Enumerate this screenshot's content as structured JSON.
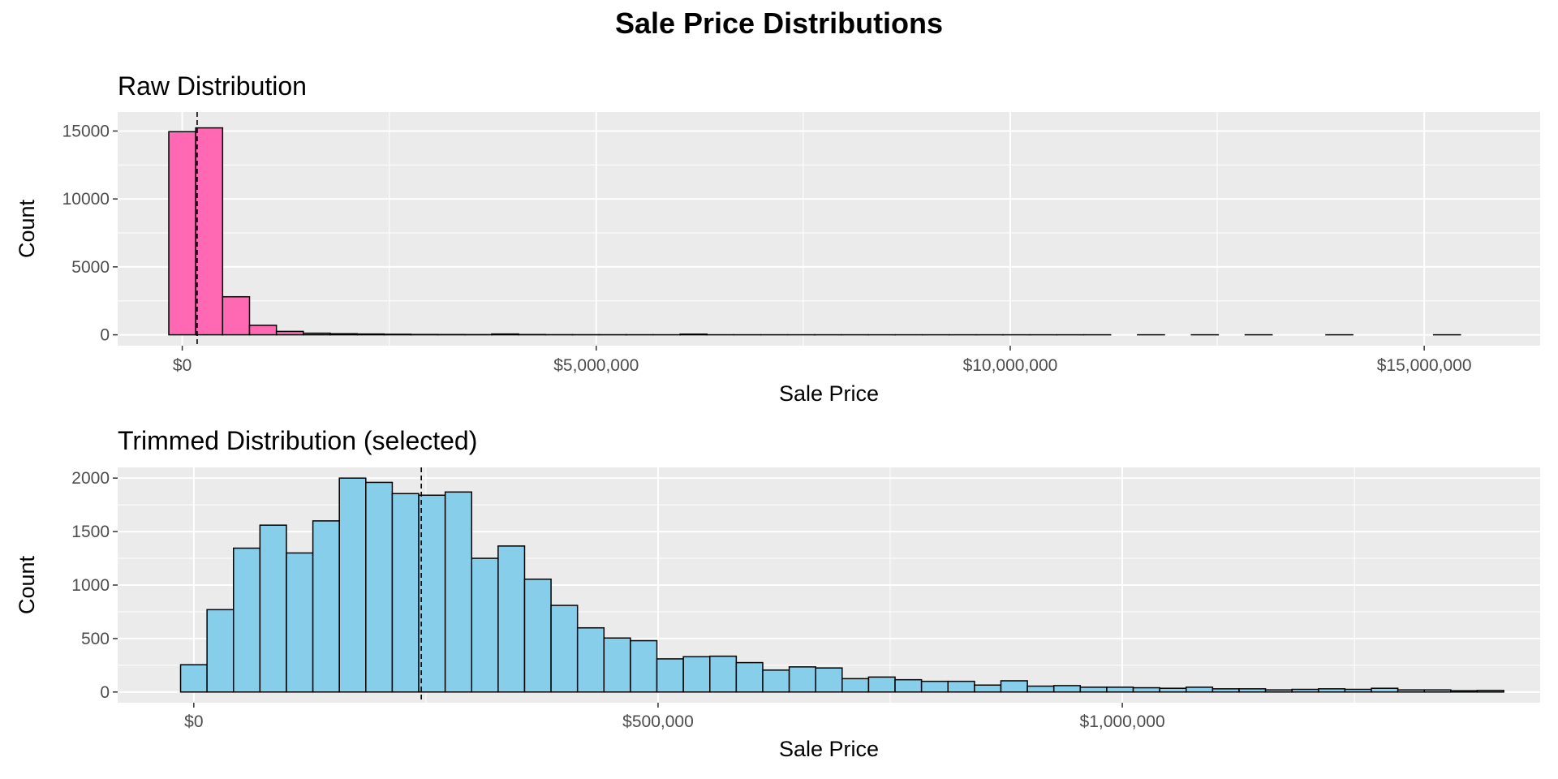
{
  "title": "Sale Price Distributions",
  "colors": {
    "panel_bg": "#EBEBEB",
    "grid": "#FFFFFF",
    "raw_fill": "#FF69B4",
    "trimmed_fill": "#87CEEB",
    "bar_stroke": "#000000",
    "axis_text": "#4D4D4D"
  },
  "chart_data": [
    {
      "type": "bar",
      "subtitle": "Raw Distribution",
      "xlabel": "Sale Price",
      "ylabel": "Count",
      "bin_width": 325000,
      "bin_start": -162500,
      "values": [
        14950,
        15230,
        2800,
        700,
        250,
        120,
        80,
        60,
        40,
        25,
        20,
        15,
        60,
        20,
        10,
        8,
        6,
        5,
        4,
        50,
        4,
        3,
        3,
        2,
        2,
        2,
        1,
        1,
        1,
        1,
        1,
        1,
        1,
        1,
        1,
        0,
        1,
        0,
        1,
        0,
        1,
        0,
        0,
        1,
        0,
        0,
        0,
        1
      ],
      "xlim": [
        -780000,
        16400000
      ],
      "ylim": [
        -800,
        16400
      ],
      "x_ticks": [
        0,
        5000000,
        10000000,
        15000000
      ],
      "x_tick_labels": [
        "$0",
        "$5,000,000",
        "$10,000,000",
        "$15,000,000"
      ],
      "y_ticks": [
        0,
        5000,
        10000,
        15000
      ],
      "y_tick_labels": [
        "0",
        "5000",
        "10000",
        "15000"
      ],
      "vline": 180000,
      "grid": true
    },
    {
      "type": "bar",
      "subtitle": "Trimmed Distribution (selected)",
      "xlabel": "Sale Price",
      "ylabel": "Count",
      "bin_width": 28500,
      "bin_start": -14250,
      "values": [
        255,
        770,
        1345,
        1560,
        1300,
        1600,
        2000,
        1960,
        1855,
        1840,
        1870,
        1250,
        1365,
        1055,
        810,
        600,
        505,
        480,
        310,
        330,
        335,
        275,
        205,
        235,
        225,
        125,
        140,
        115,
        100,
        100,
        65,
        105,
        55,
        60,
        45,
        45,
        40,
        35,
        45,
        30,
        30,
        20,
        25,
        30,
        25,
        35,
        20,
        20,
        12,
        15
      ],
      "xlim": [
        -82000,
        1450000
      ],
      "ylim": [
        -100,
        2100
      ],
      "x_ticks": [
        0,
        500000,
        1000000
      ],
      "x_tick_labels": [
        "$0",
        "$500,000",
        "$1,000,000"
      ],
      "y_ticks": [
        0,
        500,
        1000,
        1500,
        2000
      ],
      "y_tick_labels": [
        "0",
        "500",
        "1000",
        "1500",
        "2000"
      ],
      "vline": 245000,
      "grid": true
    }
  ]
}
